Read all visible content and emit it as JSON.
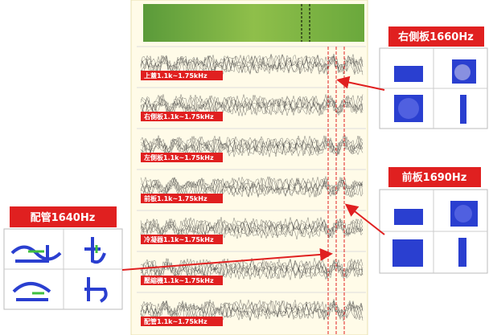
{
  "panel_labels": [
    "上蓋1.1k~1.75kHz",
    "右側板1.1k~1.75kHz",
    "左側板1.1k~1.75kHz",
    "前板1.1k~1.75kHz",
    "冷凝器1.1k~1.75kHz",
    "壓縮機1.1k~1.75kHz",
    "配管1.1k~1.75kHz"
  ],
  "callouts": [
    {
      "label": "右側板1660Hz"
    },
    {
      "label": "前板1690Hz"
    },
    {
      "label": "配管1640Hz"
    }
  ]
}
